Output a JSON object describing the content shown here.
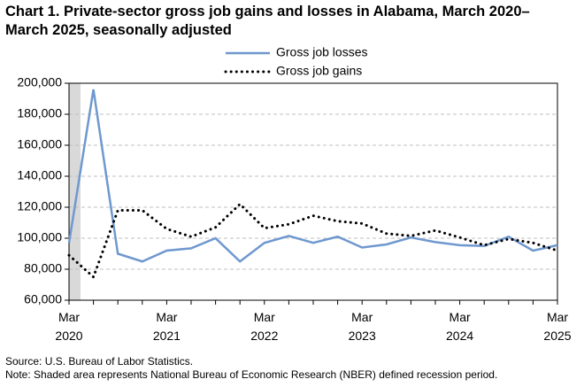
{
  "chart_data": {
    "type": "line",
    "title": "Chart 1. Private-sector gross job gains and losses in Alabama, March 2020–March 2025, seasonally adjusted",
    "categories": [
      "Mar 2020",
      null,
      null,
      null,
      "Mar 2021",
      null,
      null,
      null,
      "Mar 2022",
      null,
      null,
      null,
      "Mar 2023",
      null,
      null,
      null,
      "Mar 2024",
      null,
      null,
      null,
      "Mar 2025"
    ],
    "series": [
      {
        "name": "Gross job losses",
        "color": "#6f98cf",
        "style": "solid",
        "values": [
          97000,
          196000,
          90000,
          85000,
          92000,
          93500,
          100000,
          85000,
          97000,
          101500,
          97000,
          101000,
          94000,
          96000,
          100500,
          97500,
          95500,
          95000,
          101000,
          92000,
          95500
        ]
      },
      {
        "name": "Gross job gains",
        "color": "#000000",
        "style": "dotted",
        "values": [
          89000,
          75000,
          118000,
          118000,
          106000,
          101000,
          107000,
          122000,
          106500,
          109000,
          114500,
          111000,
          109500,
          103000,
          101500,
          105000,
          100500,
          95500,
          99500,
          97000,
          92000
        ]
      }
    ],
    "ylim": [
      60000,
      200000
    ],
    "yticks": [
      {
        "value": 60000,
        "label": "60,000"
      },
      {
        "value": 80000,
        "label": "80,000"
      },
      {
        "value": 100000,
        "label": "100,000"
      },
      {
        "value": 120000,
        "label": "120,000"
      },
      {
        "value": 140000,
        "label": "140,000"
      },
      {
        "value": 160000,
        "label": "160,000"
      },
      {
        "value": 180000,
        "label": "180,000"
      },
      {
        "value": 200000,
        "label": "200,000"
      }
    ],
    "grid": true,
    "source": "Source: U.S. Bureau of Labor Statistics.",
    "note": "Note: Shaded area represents National Bureau of Economic Research (NBER) defined recession period."
  }
}
